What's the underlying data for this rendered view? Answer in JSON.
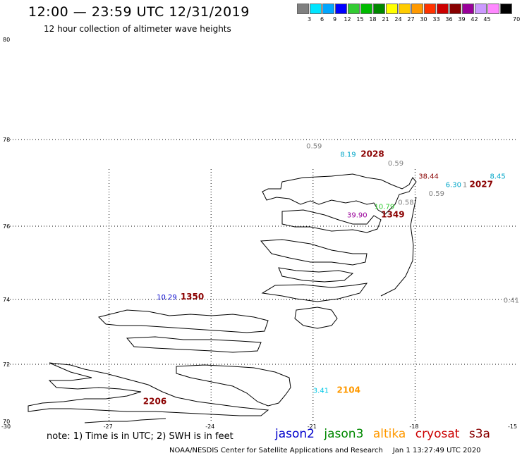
{
  "header": {
    "title": "12:00 — 23:59 UTC 12/31/2019",
    "subtitle": "12 hour collection of altimeter wave heights"
  },
  "color_scale": {
    "unit": "70 (ft)",
    "bins": [
      {
        "label": "3",
        "color": "#808080"
      },
      {
        "label": "6",
        "color": "#00e5ff"
      },
      {
        "label": "9",
        "color": "#00a6ff"
      },
      {
        "label": "12",
        "color": "#0000ff"
      },
      {
        "label": "15",
        "color": "#33cc33"
      },
      {
        "label": "18",
        "color": "#00bb00"
      },
      {
        "label": "21",
        "color": "#008800"
      },
      {
        "label": "24",
        "color": "#ffff00"
      },
      {
        "label": "27",
        "color": "#ffcc00"
      },
      {
        "label": "30",
        "color": "#ff9900"
      },
      {
        "label": "33",
        "color": "#ff3300"
      },
      {
        "label": "36",
        "color": "#cc0000"
      },
      {
        "label": "39",
        "color": "#880000"
      },
      {
        "label": "42",
        "color": "#990099"
      },
      {
        "label": "45",
        "color": "#cc99ff"
      },
      {
        "label": "",
        "color": "#ff88ff"
      },
      {
        "label": "",
        "color": "#000000"
      }
    ]
  },
  "axes": {
    "lat_labels": [
      "80",
      "78",
      "76",
      "74",
      "72",
      "70"
    ],
    "lon_labels": [
      "-30",
      "-27",
      "-24",
      "-21",
      "-18",
      "-15"
    ]
  },
  "observations": [
    {
      "text": "0.59",
      "color": "#808080",
      "lon": -21.2,
      "lat": 77.8
    },
    {
      "text": "8.19",
      "color": "#00a6c8",
      "lon": -20.2,
      "lat": 77.6
    },
    {
      "text": "2028",
      "color": "#8b0000",
      "lon": -19.6,
      "lat": 77.6,
      "bold": true
    },
    {
      "text": "0.59",
      "color": "#808080",
      "lon": -18.8,
      "lat": 77.4
    },
    {
      "text": "38.44",
      "color": "#880000",
      "lon": -17.9,
      "lat": 77.1
    },
    {
      "text": "8.45",
      "color": "#00a6c8",
      "lon": -15.8,
      "lat": 77.1
    },
    {
      "text": "6.30",
      "color": "#00a6c8",
      "lon": -17.1,
      "lat": 76.9
    },
    {
      "text": "1",
      "color": "#808080",
      "lon": -16.6,
      "lat": 76.9
    },
    {
      "text": "2027",
      "color": "#8b0000",
      "lon": -16.4,
      "lat": 76.9,
      "bold": true
    },
    {
      "text": "0.59",
      "color": "#808080",
      "lon": -17.6,
      "lat": 76.7
    },
    {
      "text": "0.58",
      "color": "#808080",
      "lon": -18.5,
      "lat": 76.5
    },
    {
      "text": "10.79",
      "color": "#33cc33",
      "lon": -19.2,
      "lat": 76.4
    },
    {
      "text": "39.90",
      "color": "#990099",
      "lon": -20.0,
      "lat": 76.2
    },
    {
      "text": "1349",
      "color": "#8b0000",
      "lon": -19.0,
      "lat": 76.2,
      "bold": true
    },
    {
      "text": "10.29",
      "color": "#0000cc",
      "lon": -25.6,
      "lat": 74.0
    },
    {
      "text": "1350",
      "color": "#8b0000",
      "lon": -24.9,
      "lat": 74.0,
      "bold": true
    },
    {
      "text": "0.41",
      "color": "#808080",
      "lon": -15.4,
      "lat": 73.9
    },
    {
      "text": "3.41",
      "color": "#00c8e6",
      "lon": -21.0,
      "lat": 71.0
    },
    {
      "text": "2104",
      "color": "#ff9900",
      "lon": -20.3,
      "lat": 71.0,
      "bold": true
    },
    {
      "text": "2206",
      "color": "#8b0000",
      "lon": -26.0,
      "lat": 70.6,
      "bold": true
    }
  ],
  "footer": {
    "note": "note: 1) Time is in UTC; 2) SWH is in feet",
    "satellites": [
      {
        "name": "jason2",
        "color": "#0000cc"
      },
      {
        "name": "jason3",
        "color": "#008800"
      },
      {
        "name": "altika",
        "color": "#ff9900"
      },
      {
        "name": "cryosat",
        "color": "#cc0000"
      },
      {
        "name": "s3a",
        "color": "#880000"
      }
    ],
    "credit": "NOAA/NESDIS Center for Satellite Applications and Research",
    "timestamp": "Jan  1 13:27:49 UTC 2020"
  }
}
